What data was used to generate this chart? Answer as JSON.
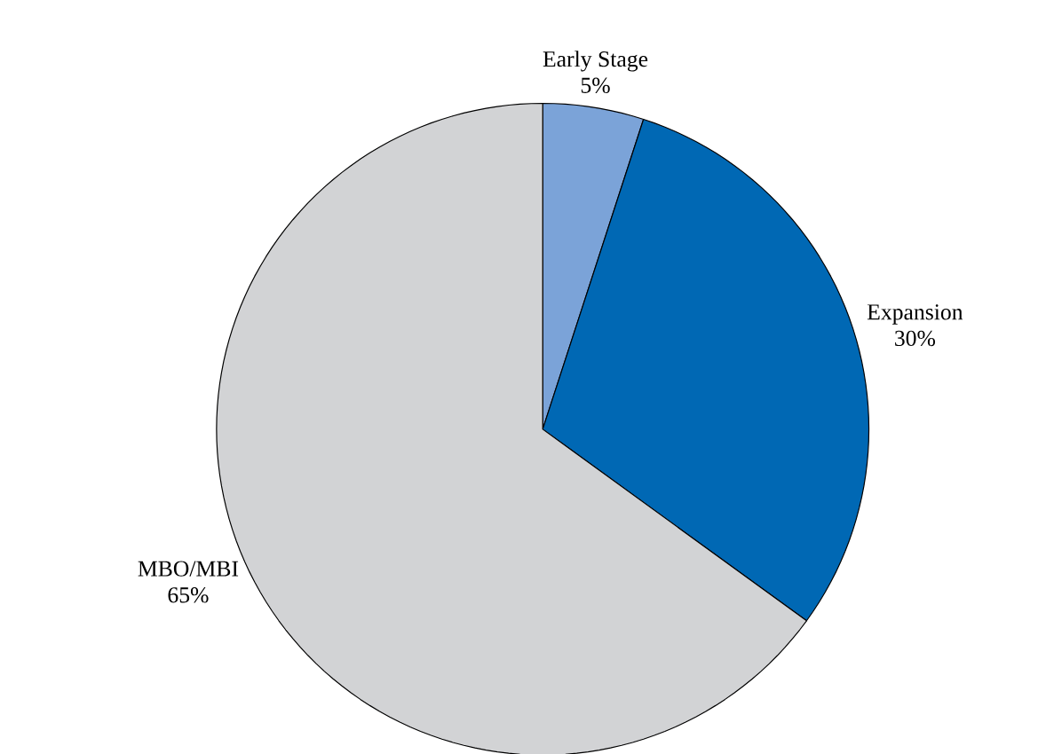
{
  "chart_data": {
    "type": "pie",
    "categories": [
      "Early Stage",
      "Expansion",
      "MBO/MBI"
    ],
    "values": [
      5,
      30,
      65
    ],
    "colors": [
      "#7ba3d8",
      "#0068b4",
      "#d2d3d5"
    ],
    "value_labels": [
      "5%",
      "30%",
      "65%"
    ]
  }
}
